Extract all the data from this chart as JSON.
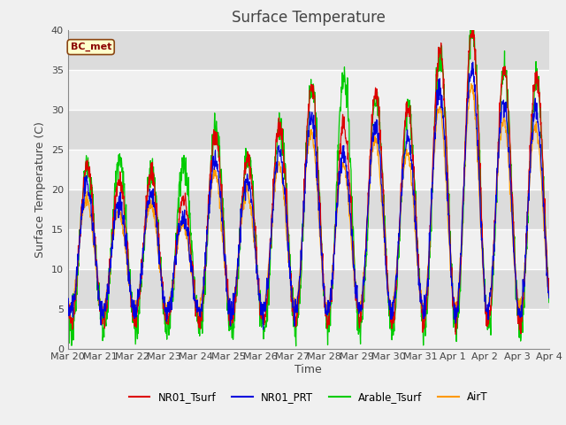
{
  "title": "Surface Temperature",
  "ylabel": "Surface Temperature (C)",
  "xlabel": "Time",
  "ylim": [
    0,
    40
  ],
  "annotation": "BC_met",
  "legend_labels": [
    "NR01_Tsurf",
    "NR01_PRT",
    "Arable_Tsurf",
    "AirT"
  ],
  "line_colors": {
    "NR01_Tsurf": "#dd0000",
    "NR01_PRT": "#0000dd",
    "Arable_Tsurf": "#00cc00",
    "AirT": "#ff9900"
  },
  "x_tick_labels": [
    "Mar 20",
    "Mar 21",
    "Mar 22",
    "Mar 23",
    "Mar 24",
    "Mar 25",
    "Mar 26",
    "Mar 27",
    "Mar 28",
    "Mar 29",
    "Mar 30",
    "Mar 31",
    "Apr 1",
    "Apr 2",
    "Apr 3",
    "Apr 4"
  ],
  "background_color": "#f0f0f0",
  "plot_bg_color": "#f0f0f0",
  "grid_color": "#ffffff",
  "num_days": 15,
  "points_per_day": 96,
  "title_fontsize": 12,
  "label_fontsize": 9,
  "tick_fontsize": 8
}
